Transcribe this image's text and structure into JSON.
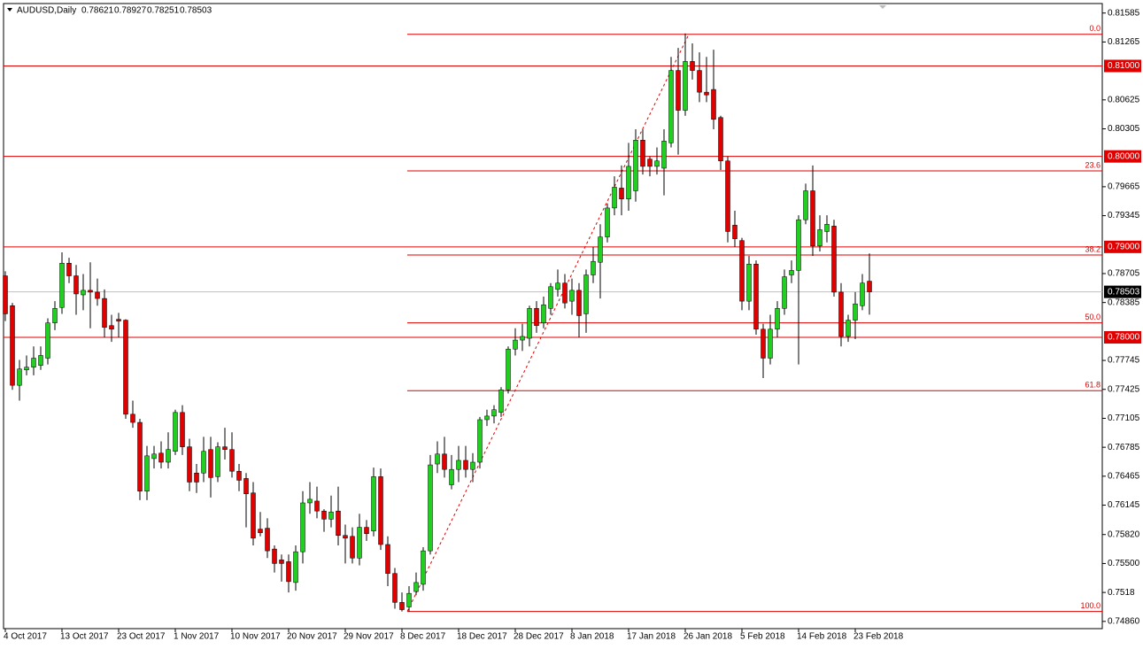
{
  "chart_data": {
    "type": "candlestick",
    "title": "AUDUSD,Daily",
    "bull_color": "#20d020",
    "bear_color": "#e00000",
    "level_color": "#e00000",
    "categories": [
      "4 Oct 2017",
      null,
      null,
      null,
      null,
      null,
      null,
      null,
      "13 Oct 2017",
      null,
      null,
      null,
      null,
      null,
      null,
      null,
      "23 Oct 2017",
      null,
      null,
      null,
      null,
      null,
      null,
      null,
      "1 Nov 2017",
      null,
      null,
      null,
      null,
      null,
      null,
      null,
      "10 Nov 2017",
      null,
      null,
      null,
      null,
      null,
      null,
      null,
      "20 Nov 2017",
      null,
      null,
      null,
      null,
      null,
      null,
      null,
      "29 Nov 2017",
      null,
      null,
      null,
      null,
      null,
      null,
      null,
      "8 Dec 2017",
      null,
      null,
      null,
      null,
      null,
      null,
      null,
      "18 Dec 2017",
      null,
      null,
      null,
      null,
      null,
      null,
      null,
      "28 Dec 2017",
      null,
      null,
      null,
      null,
      null,
      null,
      null,
      "8 Jan 2018",
      null,
      null,
      null,
      null,
      null,
      null,
      null,
      "17 Jan 2018",
      null,
      null,
      null,
      null,
      null,
      null,
      null,
      "26 Jan 2018",
      null,
      null,
      null,
      null,
      null,
      null,
      null,
      "5 Feb 2018",
      null,
      null,
      null,
      null,
      null,
      null,
      null,
      "14 Feb 2018",
      null,
      null,
      null,
      null,
      null,
      null,
      null,
      "23 Feb 2018",
      null,
      null
    ],
    "open": [
      0.7868,
      0.7835,
      0.7747,
      0.7764,
      0.7767,
      0.7769,
      0.7777,
      0.7816,
      0.7833,
      0.7882,
      0.7868,
      0.7847,
      0.7852,
      0.785,
      0.7843,
      0.7813,
      0.782,
      0.7819,
      0.7715,
      0.7706,
      0.763,
      0.7666,
      0.7672,
      0.7662,
      0.7674,
      0.7717,
      0.7679,
      0.765,
      0.765,
      0.7676,
      0.7646,
      0.7679,
      0.7676,
      0.7652,
      0.7644,
      0.7628,
      0.7588,
      0.7589,
      0.7566,
      0.7554,
      0.7552,
      0.7529,
      0.7563,
      0.7617,
      0.7619,
      0.7608,
      0.7599,
      0.7608,
      0.7581,
      0.758,
      0.7556,
      0.759,
      0.7586,
      0.7646,
      0.7571,
      0.7539,
      0.7507,
      0.7502,
      0.7519,
      0.7527,
      0.7564,
      0.766,
      0.7671,
      0.7637,
      0.7654,
      0.7664,
      0.7654,
      0.7662,
      0.7709,
      0.7713,
      0.7717,
      0.7742,
      0.7787,
      0.7797,
      0.7799,
      0.7832,
      0.7816,
      0.7832,
      0.7853,
      0.786,
      0.784,
      0.7852,
      0.7826,
      0.7869,
      0.7883,
      0.7911,
      0.7943,
      0.7965,
      0.7953,
      0.7962,
      0.8018,
      0.7997,
      0.7989,
      0.7987,
      0.8015,
      0.8095,
      0.8051,
      0.8105,
      0.8095,
      0.8071,
      0.8074,
      0.8043,
      0.7995,
      0.7924,
      0.7907,
      0.784,
      0.7881,
      0.7809,
      0.7777,
      0.7809,
      0.7832,
      0.7869,
      0.7874,
      0.793,
      0.7962,
      0.7901,
      0.7917,
      0.7923,
      0.785,
      0.7801,
      0.7819,
      0.7835,
      0.78621
    ],
    "high": [
      0.7873,
      0.7838,
      0.7775,
      0.778,
      0.779,
      0.779,
      0.7821,
      0.784,
      0.7894,
      0.7888,
      0.788,
      0.787,
      0.7883,
      0.7865,
      0.7853,
      0.7825,
      0.7827,
      0.782,
      0.773,
      0.771,
      0.768,
      0.768,
      0.7685,
      0.7695,
      0.772,
      0.7725,
      0.7688,
      0.766,
      0.769,
      0.769,
      0.7684,
      0.77,
      0.7695,
      0.766,
      0.765,
      0.764,
      0.7607,
      0.76,
      0.757,
      0.756,
      0.756,
      0.757,
      0.763,
      0.764,
      0.7635,
      0.761,
      0.7625,
      0.7635,
      0.7593,
      0.759,
      0.7605,
      0.7598,
      0.7656,
      0.7655,
      0.758,
      0.7545,
      0.7518,
      0.7525,
      0.754,
      0.7568,
      0.767,
      0.7685,
      0.769,
      0.767,
      0.768,
      0.768,
      0.7672,
      0.7712,
      0.772,
      0.7725,
      0.7745,
      0.779,
      0.781,
      0.7815,
      0.7835,
      0.784,
      0.7845,
      0.786,
      0.7875,
      0.787,
      0.7865,
      0.786,
      0.7875,
      0.79,
      0.7925,
      0.7948,
      0.7978,
      0.799,
      0.8015,
      0.803,
      0.803,
      0.8,
      0.801,
      0.803,
      0.811,
      0.812,
      0.8136,
      0.8125,
      0.8115,
      0.811,
      0.8118,
      0.8045,
      0.8,
      0.794,
      0.791,
      0.789,
      0.7885,
      0.7815,
      0.7825,
      0.784,
      0.7875,
      0.7885,
      0.7935,
      0.797,
      0.799,
      0.7935,
      0.7935,
      0.793,
      0.786,
      0.7825,
      0.785,
      0.787,
      0.78927
    ],
    "low": [
      0.7818,
      0.7742,
      0.773,
      0.7758,
      0.7758,
      0.7764,
      0.777,
      0.7808,
      0.7826,
      0.786,
      0.7825,
      0.783,
      0.781,
      0.7835,
      0.78,
      0.7795,
      0.78,
      0.771,
      0.77,
      0.762,
      0.762,
      0.7655,
      0.7655,
      0.7655,
      0.767,
      0.767,
      0.763,
      0.7628,
      0.764,
      0.7623,
      0.764,
      0.7665,
      0.7645,
      0.763,
      0.759,
      0.757,
      0.758,
      0.7556,
      0.754,
      0.753,
      0.7518,
      0.752,
      0.755,
      0.7605,
      0.76,
      0.7585,
      0.759,
      0.757,
      0.755,
      0.755,
      0.7548,
      0.7575,
      0.758,
      0.7565,
      0.7525,
      0.75,
      0.7497,
      0.7497,
      0.7515,
      0.752,
      0.756,
      0.765,
      0.7645,
      0.7632,
      0.764,
      0.7645,
      0.764,
      0.7655,
      0.7702,
      0.7705,
      0.7712,
      0.7738,
      0.778,
      0.7785,
      0.779,
      0.7805,
      0.781,
      0.7825,
      0.7845,
      0.7832,
      0.7825,
      0.78,
      0.7805,
      0.786,
      0.7843,
      0.7905,
      0.7935,
      0.7935,
      0.794,
      0.795,
      0.798,
      0.7978,
      0.798,
      0.7957,
      0.801,
      0.8002,
      0.8045,
      0.8085,
      0.806,
      0.806,
      0.803,
      0.7985,
      0.7905,
      0.79,
      0.783,
      0.783,
      0.7803,
      0.7755,
      0.777,
      0.78,
      0.7825,
      0.786,
      0.777,
      0.7925,
      0.789,
      0.7895,
      0.7905,
      0.7845,
      0.779,
      0.7795,
      0.7798,
      0.783,
      0.78251
    ],
    "close": [
      0.7826,
      0.7747,
      0.7765,
      0.7767,
      0.7777,
      0.778,
      0.7816,
      0.7832,
      0.7882,
      0.7868,
      0.7848,
      0.7852,
      0.785,
      0.7843,
      0.7811,
      0.7809,
      0.7818,
      0.7715,
      0.7706,
      0.763,
      0.7669,
      0.7671,
      0.7662,
      0.7676,
      0.7717,
      0.7679,
      0.764,
      0.764,
      0.7674,
      0.7645,
      0.7679,
      0.7676,
      0.7652,
      0.7642,
      0.7627,
      0.7578,
      0.7584,
      0.7564,
      0.755,
      0.755,
      0.753,
      0.7563,
      0.7617,
      0.7621,
      0.7608,
      0.7599,
      0.7607,
      0.7581,
      0.7578,
      0.7556,
      0.759,
      0.7583,
      0.7646,
      0.7571,
      0.7539,
      0.7507,
      0.7499,
      0.7517,
      0.7529,
      0.7564,
      0.7659,
      0.7671,
      0.7654,
      0.7654,
      0.7664,
      0.7654,
      0.7662,
      0.7709,
      0.7713,
      0.772,
      0.7742,
      0.7787,
      0.7797,
      0.7801,
      0.7832,
      0.7813,
      0.7836,
      0.7856,
      0.786,
      0.7838,
      0.7852,
      0.7824,
      0.7869,
      0.7884,
      0.7911,
      0.7943,
      0.7966,
      0.7953,
      0.7989,
      0.8018,
      0.7989,
      0.7989,
      0.7995,
      0.8017,
      0.8095,
      0.8051,
      0.8105,
      0.8095,
      0.8071,
      0.8068,
      0.8041,
      0.7995,
      0.7917,
      0.7909,
      0.784,
      0.7881,
      0.7809,
      0.7777,
      0.7809,
      0.7832,
      0.7867,
      0.7874,
      0.793,
      0.7962,
      0.7901,
      0.7919,
      0.7925,
      0.785,
      0.7801,
      0.7819,
      0.7837,
      0.786,
      0.78503
    ],
    "ylim": [
      0.7478,
      0.8169
    ],
    "yticks": [
      0.81585,
      0.81265,
      0.80625,
      0.80305,
      0.79665,
      0.79345,
      0.78705,
      0.78385,
      0.77745,
      0.77425,
      0.77105,
      0.76785,
      0.76465,
      0.76145,
      {
        "value": 0.7582,
        "label": "0.75820"
      },
      {
        "value": 0.755,
        "label": "0.75500"
      },
      0.7518,
      {
        "value": 0.7486,
        "label": "0.74860"
      }
    ],
    "levels": [
      {
        "value": 0.81,
        "label": "0.81000"
      },
      {
        "value": 0.8,
        "label": "0.80000"
      },
      {
        "value": 0.79,
        "label": "0.79000"
      },
      {
        "value": 0.78,
        "label": "0.78000"
      }
    ],
    "fibonacci": [
      {
        "label": "0.0",
        "price": 0.8135
      },
      {
        "label": "23.6",
        "price": 0.7984
      },
      {
        "label": "38.2",
        "price": 0.7891
      },
      {
        "label": "50.0",
        "price": 0.7816
      },
      {
        "label": "61.8",
        "price": 0.7741
      },
      {
        "label": "100.0",
        "price": 0.7497
      }
    ]
  }
}
